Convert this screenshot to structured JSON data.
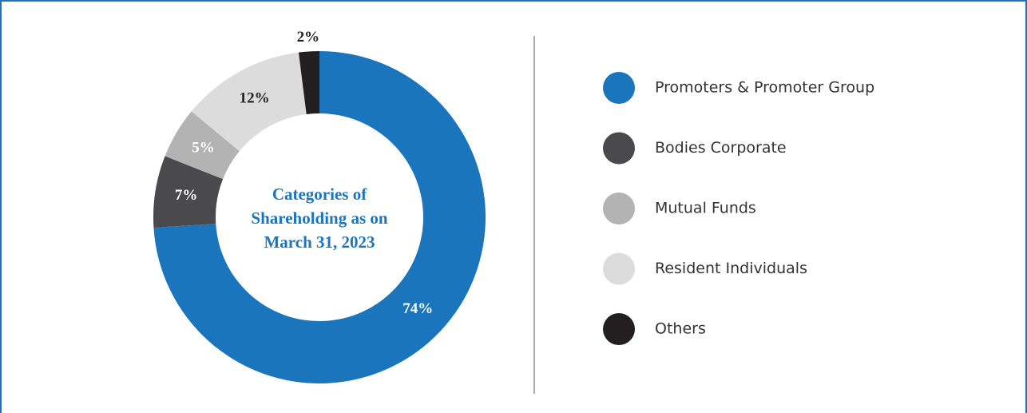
{
  "chart_data": {
    "type": "donut",
    "title": "Categories of Shareholding as on March 31, 2023",
    "categories": [
      "Promoters & Promoter Group",
      "Bodies Corporate",
      "Mutual Funds",
      "Resident Individuals",
      "Others"
    ],
    "values": [
      74,
      7,
      5,
      12,
      2
    ],
    "value_labels": [
      "74%",
      "7%",
      "5%",
      "12%",
      "2%"
    ],
    "colors": [
      "#1a75bc",
      "#4a4a4c",
      "#b3b3b3",
      "#dcdcdc",
      "#231f20"
    ],
    "legend": "right"
  }
}
